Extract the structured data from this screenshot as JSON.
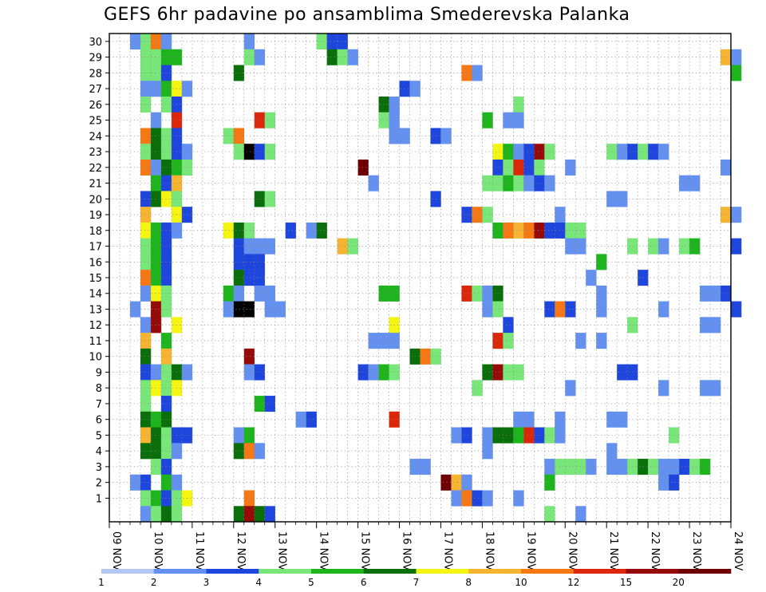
{
  "chart_data": {
    "type": "heatmap",
    "title": "GEFS 6hr padavine po ansamblima Smederevska Palanka",
    "x_labels": [
      "09 NOV",
      "10 NOV",
      "11 NOV",
      "12 NOV",
      "13 NOV",
      "14 NOV",
      "15 NOV",
      "16 NOV",
      "17 NOV",
      "18 NOV",
      "19 NOV",
      "20 NOV",
      "21 NOV",
      "22 NOV",
      "23 NOV",
      "24 NOV"
    ],
    "steps_per_day": 4,
    "ylim": [
      0,
      30
    ],
    "y_ticks": [
      1,
      2,
      3,
      4,
      5,
      6,
      7,
      8,
      9,
      10,
      11,
      12,
      13,
      14,
      15,
      16,
      17,
      18,
      19,
      20,
      21,
      22,
      23,
      24,
      25,
      26,
      27,
      28,
      29,
      30
    ],
    "grid": true,
    "legend": {
      "placement": "bottom",
      "colors": [
        "#b4c8f5",
        "#6490f0",
        "#1e46dc",
        "#78e678",
        "#1eb41e",
        "#0a6e0a",
        "#f5f514",
        "#f5b432",
        "#f57814",
        "#dc280a",
        "#960a0a",
        "#6e0000"
      ],
      "labels": [
        "1",
        "2",
        "3",
        "4",
        "5",
        "6",
        "7",
        "8",
        "10",
        "12",
        "15",
        "20"
      ]
    },
    "cells": [
      [
        30,
        2,
        1
      ],
      [
        30,
        3,
        3
      ],
      [
        30,
        4,
        8
      ],
      [
        30,
        5,
        1
      ],
      [
        30,
        13,
        1
      ],
      [
        30,
        20,
        3
      ],
      [
        30,
        21,
        2
      ],
      [
        30,
        22,
        2
      ],
      [
        29,
        3,
        3
      ],
      [
        29,
        4,
        3
      ],
      [
        29,
        5,
        4
      ],
      [
        29,
        6,
        4
      ],
      [
        29,
        13,
        3
      ],
      [
        29,
        14,
        1
      ],
      [
        29,
        21,
        5
      ],
      [
        29,
        22,
        3
      ],
      [
        29,
        23,
        1
      ],
      [
        29,
        59,
        7
      ],
      [
        29,
        60,
        1
      ],
      [
        28,
        3,
        3
      ],
      [
        28,
        4,
        3
      ],
      [
        28,
        5,
        2
      ],
      [
        28,
        12,
        5
      ],
      [
        28,
        34,
        8
      ],
      [
        28,
        35,
        1
      ],
      [
        28,
        60,
        4
      ],
      [
        27,
        3,
        1
      ],
      [
        27,
        4,
        1
      ],
      [
        27,
        5,
        4
      ],
      [
        27,
        6,
        6
      ],
      [
        27,
        7,
        1
      ],
      [
        27,
        28,
        2
      ],
      [
        27,
        29,
        1
      ],
      [
        26,
        3,
        3
      ],
      [
        26,
        5,
        3
      ],
      [
        26,
        6,
        2
      ],
      [
        26,
        26,
        5
      ],
      [
        26,
        27,
        1
      ],
      [
        26,
        39,
        3
      ],
      [
        25,
        4,
        1
      ],
      [
        25,
        6,
        9
      ],
      [
        25,
        14,
        9
      ],
      [
        25,
        15,
        3
      ],
      [
        25,
        26,
        3
      ],
      [
        25,
        27,
        1
      ],
      [
        25,
        36,
        4
      ],
      [
        25,
        38,
        1
      ],
      [
        25,
        39,
        1
      ],
      [
        24,
        3,
        8
      ],
      [
        24,
        4,
        5
      ],
      [
        24,
        5,
        3
      ],
      [
        24,
        6,
        2
      ],
      [
        24,
        11,
        3
      ],
      [
        24,
        12,
        8
      ],
      [
        24,
        27,
        1
      ],
      [
        24,
        28,
        1
      ],
      [
        24,
        31,
        2
      ],
      [
        24,
        32,
        1
      ],
      [
        23,
        3,
        3
      ],
      [
        23,
        4,
        5
      ],
      [
        23,
        5,
        3
      ],
      [
        23,
        6,
        2
      ],
      [
        23,
        7,
        1
      ],
      [
        23,
        12,
        3
      ],
      [
        23,
        13,
        12
      ],
      [
        23,
        14,
        2
      ],
      [
        23,
        15,
        3
      ],
      [
        23,
        37,
        6
      ],
      [
        23,
        38,
        4
      ],
      [
        23,
        39,
        1
      ],
      [
        23,
        40,
        2
      ],
      [
        23,
        41,
        10
      ],
      [
        23,
        42,
        3
      ],
      [
        23,
        48,
        3
      ],
      [
        23,
        49,
        1
      ],
      [
        23,
        50,
        2
      ],
      [
        23,
        51,
        3
      ],
      [
        23,
        52,
        2
      ],
      [
        23,
        53,
        1
      ],
      [
        22,
        3,
        8
      ],
      [
        22,
        4,
        1
      ],
      [
        22,
        5,
        5
      ],
      [
        22,
        6,
        4
      ],
      [
        22,
        7,
        3
      ],
      [
        22,
        24,
        11
      ],
      [
        22,
        37,
        2
      ],
      [
        22,
        38,
        3
      ],
      [
        22,
        39,
        9
      ],
      [
        22,
        40,
        2
      ],
      [
        22,
        41,
        3
      ],
      [
        22,
        44,
        1
      ],
      [
        22,
        59,
        1
      ],
      [
        21,
        4,
        4
      ],
      [
        21,
        5,
        2
      ],
      [
        21,
        6,
        7
      ],
      [
        21,
        25,
        1
      ],
      [
        21,
        36,
        3
      ],
      [
        21,
        37,
        3
      ],
      [
        21,
        38,
        4
      ],
      [
        21,
        39,
        3
      ],
      [
        21,
        40,
        1
      ],
      [
        21,
        41,
        2
      ],
      [
        21,
        42,
        1
      ],
      [
        21,
        55,
        1
      ],
      [
        21,
        56,
        1
      ],
      [
        20,
        3,
        2
      ],
      [
        20,
        4,
        5
      ],
      [
        20,
        5,
        6
      ],
      [
        20,
        6,
        3
      ],
      [
        20,
        14,
        5
      ],
      [
        20,
        15,
        3
      ],
      [
        20,
        31,
        2
      ],
      [
        20,
        48,
        1
      ],
      [
        20,
        49,
        1
      ],
      [
        19,
        3,
        7
      ],
      [
        19,
        6,
        6
      ],
      [
        19,
        7,
        2
      ],
      [
        19,
        34,
        2
      ],
      [
        19,
        35,
        8
      ],
      [
        19,
        36,
        3
      ],
      [
        19,
        43,
        1
      ],
      [
        19,
        59,
        7
      ],
      [
        19,
        60,
        1
      ],
      [
        18,
        3,
        6
      ],
      [
        18,
        4,
        4
      ],
      [
        18,
        5,
        2
      ],
      [
        18,
        6,
        1
      ],
      [
        18,
        11,
        6
      ],
      [
        18,
        12,
        5
      ],
      [
        18,
        13,
        3
      ],
      [
        18,
        17,
        2
      ],
      [
        18,
        19,
        1
      ],
      [
        18,
        20,
        5
      ],
      [
        18,
        37,
        4
      ],
      [
        18,
        38,
        8
      ],
      [
        18,
        39,
        7
      ],
      [
        18,
        40,
        8
      ],
      [
        18,
        41,
        10
      ],
      [
        18,
        42,
        2
      ],
      [
        18,
        43,
        2
      ],
      [
        18,
        44,
        3
      ],
      [
        18,
        45,
        3
      ],
      [
        17,
        3,
        3
      ],
      [
        17,
        4,
        4
      ],
      [
        17,
        5,
        2
      ],
      [
        17,
        12,
        2
      ],
      [
        17,
        13,
        1
      ],
      [
        17,
        14,
        1
      ],
      [
        17,
        15,
        1
      ],
      [
        17,
        22,
        7
      ],
      [
        17,
        23,
        3
      ],
      [
        17,
        44,
        1
      ],
      [
        17,
        45,
        1
      ],
      [
        17,
        50,
        3
      ],
      [
        17,
        52,
        3
      ],
      [
        17,
        53,
        1
      ],
      [
        17,
        55,
        3
      ],
      [
        17,
        56,
        4
      ],
      [
        17,
        60,
        2
      ],
      [
        16,
        3,
        3
      ],
      [
        16,
        4,
        4
      ],
      [
        16,
        5,
        2
      ],
      [
        16,
        12,
        2
      ],
      [
        16,
        13,
        2
      ],
      [
        16,
        14,
        2
      ],
      [
        16,
        47,
        4
      ],
      [
        15,
        3,
        8
      ],
      [
        15,
        4,
        4
      ],
      [
        15,
        5,
        2
      ],
      [
        15,
        12,
        5
      ],
      [
        15,
        13,
        2
      ],
      [
        15,
        14,
        2
      ],
      [
        15,
        46,
        1
      ],
      [
        15,
        51,
        2
      ],
      [
        14,
        3,
        1
      ],
      [
        14,
        4,
        6
      ],
      [
        14,
        5,
        3
      ],
      [
        14,
        11,
        4
      ],
      [
        14,
        12,
        1
      ],
      [
        14,
        14,
        1
      ],
      [
        14,
        15,
        1
      ],
      [
        14,
        26,
        4
      ],
      [
        14,
        27,
        4
      ],
      [
        14,
        34,
        9
      ],
      [
        14,
        35,
        3
      ],
      [
        14,
        36,
        1
      ],
      [
        14,
        37,
        5
      ],
      [
        14,
        47,
        1
      ],
      [
        14,
        57,
        1
      ],
      [
        14,
        58,
        1
      ],
      [
        14,
        59,
        2
      ],
      [
        13,
        2,
        1
      ],
      [
        13,
        4,
        10
      ],
      [
        13,
        5,
        3
      ],
      [
        13,
        11,
        1
      ],
      [
        13,
        12,
        12
      ],
      [
        13,
        13,
        12
      ],
      [
        13,
        15,
        1
      ],
      [
        13,
        16,
        1
      ],
      [
        13,
        36,
        1
      ],
      [
        13,
        37,
        3
      ],
      [
        13,
        42,
        2
      ],
      [
        13,
        43,
        8
      ],
      [
        13,
        44,
        2
      ],
      [
        13,
        47,
        1
      ],
      [
        13,
        53,
        1
      ],
      [
        13,
        60,
        2
      ],
      [
        12,
        3,
        1
      ],
      [
        12,
        4,
        10
      ],
      [
        12,
        6,
        6
      ],
      [
        12,
        27,
        6
      ],
      [
        12,
        38,
        2
      ],
      [
        12,
        50,
        3
      ],
      [
        12,
        57,
        1
      ],
      [
        12,
        58,
        1
      ],
      [
        11,
        3,
        7
      ],
      [
        11,
        5,
        4
      ],
      [
        11,
        25,
        1
      ],
      [
        11,
        26,
        1
      ],
      [
        11,
        27,
        1
      ],
      [
        11,
        37,
        9
      ],
      [
        11,
        38,
        3
      ],
      [
        11,
        45,
        1
      ],
      [
        11,
        47,
        1
      ],
      [
        10,
        3,
        5
      ],
      [
        10,
        5,
        7
      ],
      [
        10,
        13,
        10
      ],
      [
        10,
        29,
        5
      ],
      [
        10,
        30,
        8
      ],
      [
        10,
        31,
        3
      ],
      [
        9,
        3,
        2
      ],
      [
        9,
        4,
        1
      ],
      [
        9,
        5,
        3
      ],
      [
        9,
        6,
        5
      ],
      [
        9,
        7,
        1
      ],
      [
        9,
        13,
        1
      ],
      [
        9,
        14,
        2
      ],
      [
        9,
        24,
        2
      ],
      [
        9,
        25,
        1
      ],
      [
        9,
        26,
        4
      ],
      [
        9,
        27,
        3
      ],
      [
        9,
        36,
        5
      ],
      [
        9,
        37,
        10
      ],
      [
        9,
        38,
        3
      ],
      [
        9,
        39,
        3
      ],
      [
        9,
        49,
        2
      ],
      [
        9,
        50,
        2
      ],
      [
        8,
        3,
        3
      ],
      [
        8,
        4,
        6
      ],
      [
        8,
        5,
        3
      ],
      [
        8,
        6,
        6
      ],
      [
        8,
        35,
        3
      ],
      [
        8,
        44,
        1
      ],
      [
        8,
        53,
        1
      ],
      [
        8,
        57,
        1
      ],
      [
        8,
        58,
        1
      ],
      [
        7,
        3,
        3
      ],
      [
        7,
        5,
        2
      ],
      [
        7,
        14,
        4
      ],
      [
        7,
        15,
        2
      ],
      [
        6,
        3,
        5
      ],
      [
        6,
        4,
        4
      ],
      [
        6,
        5,
        5
      ],
      [
        6,
        18,
        1
      ],
      [
        6,
        19,
        2
      ],
      [
        6,
        27,
        9
      ],
      [
        6,
        39,
        1
      ],
      [
        6,
        40,
        1
      ],
      [
        6,
        43,
        1
      ],
      [
        6,
        48,
        1
      ],
      [
        6,
        49,
        1
      ],
      [
        5,
        3,
        7
      ],
      [
        5,
        4,
        5
      ],
      [
        5,
        5,
        3
      ],
      [
        5,
        6,
        2
      ],
      [
        5,
        7,
        2
      ],
      [
        5,
        12,
        1
      ],
      [
        5,
        13,
        4
      ],
      [
        5,
        33,
        1
      ],
      [
        5,
        34,
        2
      ],
      [
        5,
        36,
        1
      ],
      [
        5,
        37,
        5
      ],
      [
        5,
        38,
        5
      ],
      [
        5,
        39,
        4
      ],
      [
        5,
        40,
        9
      ],
      [
        5,
        41,
        2
      ],
      [
        5,
        42,
        3
      ],
      [
        5,
        43,
        1
      ],
      [
        5,
        54,
        3
      ],
      [
        4,
        3,
        5
      ],
      [
        4,
        4,
        5
      ],
      [
        4,
        5,
        3
      ],
      [
        4,
        6,
        1
      ],
      [
        4,
        12,
        5
      ],
      [
        4,
        13,
        8
      ],
      [
        4,
        14,
        1
      ],
      [
        4,
        36,
        1
      ],
      [
        4,
        48,
        1
      ],
      [
        3,
        4,
        3
      ],
      [
        3,
        5,
        2
      ],
      [
        3,
        29,
        1
      ],
      [
        3,
        30,
        1
      ],
      [
        3,
        42,
        1
      ],
      [
        3,
        43,
        3
      ],
      [
        3,
        44,
        3
      ],
      [
        3,
        45,
        3
      ],
      [
        3,
        46,
        1
      ],
      [
        3,
        48,
        1
      ],
      [
        3,
        49,
        1
      ],
      [
        3,
        50,
        3
      ],
      [
        3,
        51,
        5
      ],
      [
        3,
        52,
        3
      ],
      [
        3,
        53,
        1
      ],
      [
        3,
        54,
        1
      ],
      [
        3,
        55,
        2
      ],
      [
        3,
        56,
        3
      ],
      [
        3,
        57,
        4
      ],
      [
        2,
        2,
        1
      ],
      [
        2,
        3,
        2
      ],
      [
        2,
        5,
        4
      ],
      [
        2,
        6,
        1
      ],
      [
        2,
        32,
        11
      ],
      [
        2,
        33,
        7
      ],
      [
        2,
        34,
        1
      ],
      [
        2,
        42,
        4
      ],
      [
        2,
        53,
        1
      ],
      [
        2,
        54,
        2
      ],
      [
        1,
        3,
        3
      ],
      [
        1,
        4,
        4
      ],
      [
        1,
        5,
        2
      ],
      [
        1,
        6,
        3
      ],
      [
        1,
        7,
        6
      ],
      [
        1,
        13,
        8
      ],
      [
        1,
        33,
        1
      ],
      [
        1,
        34,
        8
      ],
      [
        1,
        35,
        2
      ],
      [
        1,
        36,
        1
      ],
      [
        1,
        39,
        1
      ],
      [
        0,
        3,
        1
      ],
      [
        0,
        4,
        3
      ],
      [
        0,
        5,
        5
      ],
      [
        0,
        6,
        3
      ],
      [
        0,
        12,
        5
      ],
      [
        0,
        13,
        10
      ],
      [
        0,
        14,
        5
      ],
      [
        0,
        15,
        2
      ],
      [
        0,
        42,
        3
      ],
      [
        0,
        45,
        1
      ]
    ]
  }
}
